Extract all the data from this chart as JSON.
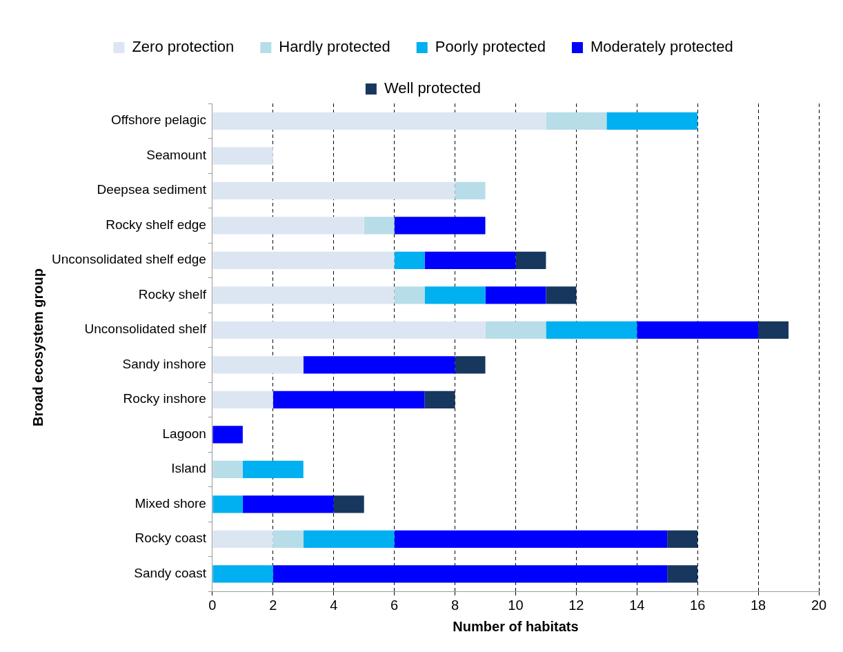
{
  "chart_data": {
    "type": "bar",
    "orientation": "horizontal",
    "stacked": true,
    "xlabel": "Number of habitats",
    "ylabel": "Broad ecosystem group",
    "categories": [
      "Offshore pelagic",
      "Seamount",
      "Deepsea sediment",
      "Rocky shelf edge",
      "Unconsolidated shelf edge",
      "Rocky shelf",
      "Unconsolidated shelf",
      "Sandy inshore",
      "Rocky inshore",
      "Lagoon",
      "Island",
      "Mixed shore",
      "Rocky coast",
      "Sandy coast"
    ],
    "series": [
      {
        "name": "Zero protection",
        "color": "#dce6f2",
        "values": [
          11,
          2,
          8,
          5,
          6,
          6,
          9,
          3,
          2,
          0,
          0,
          0,
          2,
          0
        ]
      },
      {
        "name": "Hardly protected",
        "color": "#b7dde8",
        "values": [
          2,
          0,
          1,
          1,
          0,
          1,
          2,
          0,
          0,
          0,
          1,
          0,
          1,
          0
        ]
      },
      {
        "name": "Poorly protected",
        "color": "#00b0f0",
        "values": [
          3,
          0,
          0,
          0,
          1,
          2,
          3,
          0,
          0,
          0,
          2,
          1,
          3,
          2
        ]
      },
      {
        "name": "Moderately protected",
        "color": "#0000ff",
        "values": [
          0,
          0,
          0,
          3,
          3,
          2,
          4,
          5,
          5,
          1,
          0,
          3,
          9,
          13
        ]
      },
      {
        "name": "Well protected",
        "color": "#17375e",
        "values": [
          0,
          0,
          0,
          0,
          1,
          1,
          1,
          1,
          1,
          0,
          0,
          1,
          1,
          1
        ]
      }
    ],
    "xlim": [
      0,
      20
    ],
    "xticks": [
      0,
      2,
      4,
      6,
      8,
      10,
      12,
      14,
      16,
      18,
      20
    ],
    "grid": "x",
    "legend": "top"
  }
}
